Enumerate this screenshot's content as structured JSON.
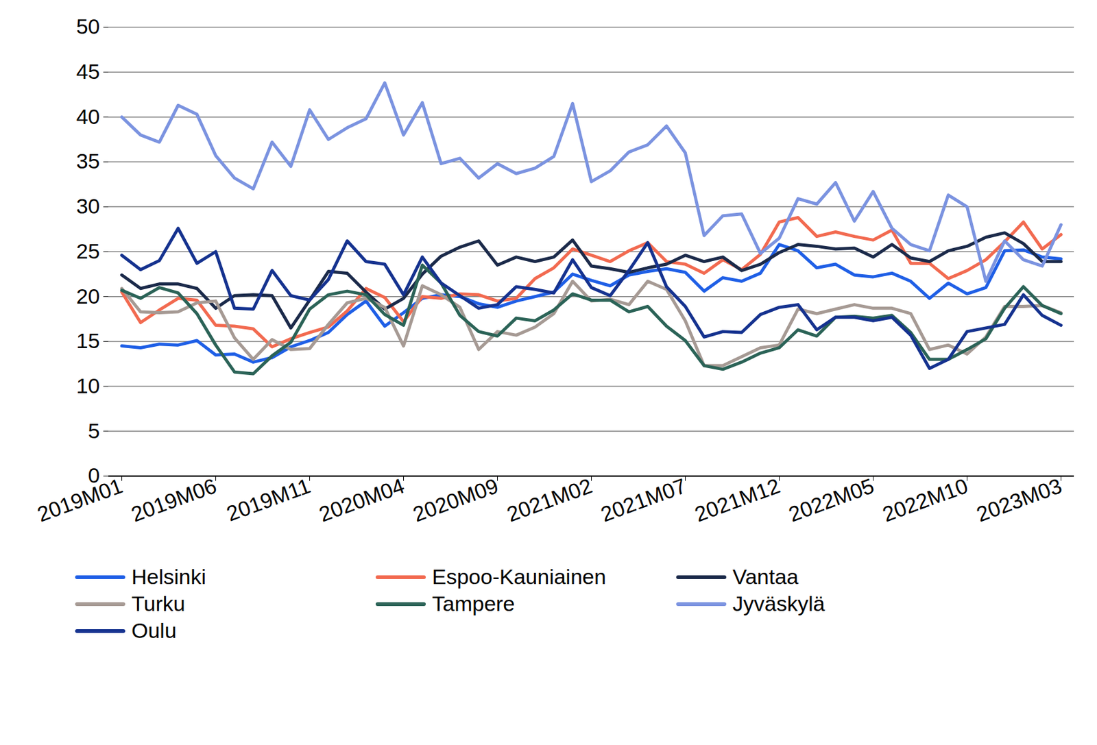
{
  "chart_data": {
    "type": "line",
    "categories": [
      "2019M01",
      null,
      null,
      null,
      null,
      "2019M06",
      null,
      null,
      null,
      null,
      "2019M11",
      null,
      null,
      null,
      null,
      "2020M04",
      null,
      null,
      null,
      null,
      "2020M09",
      null,
      null,
      null,
      null,
      "2021M02",
      null,
      null,
      null,
      null,
      "2021M07",
      null,
      null,
      null,
      null,
      "2021M12",
      null,
      null,
      null,
      null,
      "2022M05",
      null,
      null,
      null,
      null,
      "2022M10",
      null,
      null,
      null,
      null,
      "2023M03"
    ],
    "series": [
      {
        "name": "Helsinki",
        "color": "#1f5fe6",
        "values": [
          14.5,
          14.3,
          14.7,
          14.6,
          15.1,
          13.5,
          13.6,
          12.7,
          13.2,
          14.4,
          15.1,
          16,
          18,
          19.5,
          16.7,
          18.2,
          19.8,
          20.2,
          20,
          19.2,
          18.8,
          19.5,
          20,
          20.5,
          22.5,
          21.8,
          21.2,
          22.4,
          22.8,
          23.1,
          22.7,
          20.6,
          22.1,
          21.7,
          22.6,
          25.8,
          25.1,
          23.2,
          23.6,
          22.4,
          22.2,
          22.6,
          21.7,
          19.8,
          21.5,
          20.3,
          21,
          25.1,
          25.2,
          24.4,
          24.2
        ]
      },
      {
        "name": "Espoo-Kauniainen",
        "color": "#f26a50",
        "values": [
          20.5,
          17.1,
          18.5,
          19.8,
          19.6,
          16.8,
          16.7,
          16.4,
          14.4,
          15.3,
          16,
          16.6,
          18.4,
          20.9,
          19.9,
          17.2,
          20,
          19.8,
          20.3,
          20.2,
          19.5,
          19.8,
          22,
          23.2,
          25.3,
          24.6,
          23.9,
          25.1,
          26,
          23.9,
          23.6,
          22.6,
          24.1,
          23,
          24.7,
          28.3,
          28.8,
          26.7,
          27.2,
          26.7,
          26.3,
          27.4,
          23.7,
          23.7,
          22,
          22.9,
          24.1,
          26.1,
          28.3,
          25.3,
          26.9
        ]
      },
      {
        "name": "Vantaa",
        "color": "#1b2a4a",
        "values": [
          22.4,
          20.9,
          21.4,
          21.4,
          20.9,
          18.7,
          20.1,
          20.2,
          20.1,
          16.5,
          19.6,
          22.8,
          22.6,
          20.5,
          18.6,
          19.8,
          22.5,
          24.5,
          25.5,
          26.2,
          23.5,
          24.4,
          23.9,
          24.4,
          26.3,
          23.4,
          23.1,
          22.7,
          23.2,
          23.6,
          24.6,
          23.9,
          24.4,
          22.9,
          23.6,
          24.9,
          25.8,
          25.6,
          25.3,
          25.4,
          24.4,
          25.8,
          24.3,
          23.9,
          25.1,
          25.6,
          26.6,
          27.1,
          25.9,
          23.9,
          23.9
        ]
      },
      {
        "name": "Turku",
        "color": "#a69a94",
        "values": [
          20.9,
          18.3,
          18.2,
          18.3,
          19.3,
          19.5,
          15.4,
          13,
          15.2,
          14.1,
          14.2,
          16.9,
          19.3,
          19.8,
          18.8,
          14.5,
          21.2,
          20.2,
          18.8,
          14.1,
          16.1,
          15.7,
          16.6,
          18.1,
          21.7,
          19.5,
          19.7,
          19.1,
          21.7,
          20.8,
          17.3,
          12.3,
          12.3,
          13.3,
          14.3,
          14.6,
          18.6,
          18.1,
          18.6,
          19.1,
          18.7,
          18.7,
          18.1,
          14.1,
          14.6,
          13.6,
          15.5,
          18.9,
          18.9,
          19,
          18.2
        ]
      },
      {
        "name": "Tampere",
        "color": "#2b6357",
        "values": [
          20.7,
          19.8,
          21,
          20.4,
          18.1,
          14.6,
          11.6,
          11.4,
          13.4,
          14.9,
          18.6,
          20.2,
          20.6,
          20.2,
          18,
          16.8,
          23.5,
          21.5,
          17.9,
          16.1,
          15.6,
          17.6,
          17.3,
          18.5,
          20.3,
          19.6,
          19.6,
          18.3,
          18.9,
          16.7,
          15.1,
          12.3,
          11.9,
          12.7,
          13.7,
          14.3,
          16.3,
          15.6,
          17.7,
          17.8,
          17.6,
          17.9,
          16,
          13,
          13,
          14.1,
          15.3,
          18.7,
          21.1,
          19,
          18.1
        ]
      },
      {
        "name": "Jyväskylä",
        "color": "#7b93e0",
        "values": [
          40,
          38,
          37.2,
          41.3,
          40.3,
          35.7,
          33.2,
          32,
          37.2,
          34.5,
          40.8,
          37.5,
          38.8,
          39.8,
          43.8,
          38,
          41.6,
          34.8,
          35.4,
          33.2,
          34.8,
          33.7,
          34.3,
          35.6,
          41.5,
          32.8,
          34,
          36.1,
          36.9,
          39,
          36,
          26.8,
          29,
          29.2,
          24.8,
          26.5,
          30.9,
          30.3,
          32.7,
          28.4,
          31.7,
          27.6,
          25.8,
          25.1,
          31.3,
          30,
          21.7,
          26.2,
          24.1,
          23.4,
          28
        ]
      },
      {
        "name": "Oulu",
        "color": "#15328f",
        "values": [
          24.6,
          23,
          24,
          27.6,
          23.7,
          25,
          18.7,
          18.6,
          22.9,
          20.1,
          19.6,
          21.9,
          26.2,
          23.9,
          23.6,
          20.2,
          24.4,
          21.5,
          20.1,
          18.7,
          19.1,
          21.1,
          20.8,
          20.4,
          24.1,
          21,
          20.1,
          22.9,
          26,
          21.1,
          18.9,
          15.5,
          16.1,
          16,
          18,
          18.8,
          19.1,
          16.3,
          17.7,
          17.7,
          17.3,
          17.7,
          15.7,
          12,
          13,
          16.1,
          16.5,
          16.9,
          20.2,
          17.9,
          16.8
        ]
      }
    ],
    "ylim": [
      0,
      50
    ],
    "yticks": [
      0,
      5,
      10,
      15,
      20,
      25,
      30,
      35,
      40,
      45,
      50
    ],
    "grid": true,
    "legend": "bottom"
  }
}
